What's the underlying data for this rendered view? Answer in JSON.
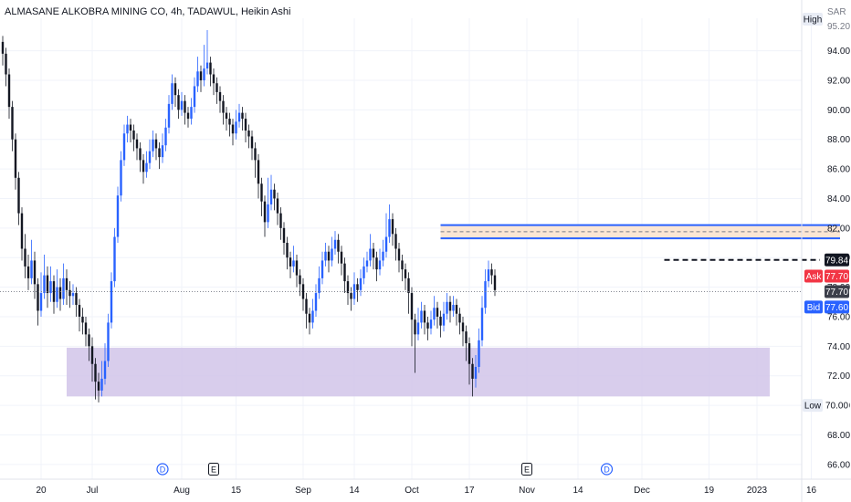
{
  "header": {
    "title": "ALMASANE ALKOBRA MINING CO, 4h, TADAWUL, Heikin Ashi",
    "currency": "SAR"
  },
  "chart_data": {
    "type": "candlestick",
    "chart_style": "Heikin Ashi",
    "symbol": "ALMASANE ALKOBRA MINING CO",
    "interval": "4h",
    "exchange": "TADAWUL",
    "currency": "SAR",
    "ylim": [
      65.0,
      96.2
    ],
    "y_ticks": [
      "94.00",
      "92.00",
      "90.00",
      "88.00",
      "86.00",
      "84.00",
      "82.00",
      "80.00",
      "78.00",
      "76.00",
      "74.00",
      "72.00",
      "70.00",
      "68.00",
      "66.00"
    ],
    "x_ticks": [
      {
        "label": "20",
        "index": 12
      },
      {
        "label": "Jul",
        "index": 28
      },
      {
        "label": "Aug",
        "index": 56
      },
      {
        "label": "15",
        "index": 73
      },
      {
        "label": "Sep",
        "index": 94
      },
      {
        "label": "14",
        "index": 110
      },
      {
        "label": "Oct",
        "index": 128
      },
      {
        "label": "17",
        "index": 146
      },
      {
        "label": "Nov",
        "index": 164
      },
      {
        "label": "14",
        "index": 180
      },
      {
        "label": "Dec",
        "index": 200
      },
      {
        "label": "19",
        "index": 221
      },
      {
        "label": "2023",
        "index": 236
      },
      {
        "label": "16",
        "index": 253
      }
    ],
    "candles": [
      [
        94.6,
        93.8,
        95.0,
        93.0
      ],
      [
        93.8,
        92.4,
        94.2,
        91.6
      ],
      [
        92.4,
        90.2,
        92.8,
        89.4
      ],
      [
        90.2,
        88.0,
        90.6,
        87.2
      ],
      [
        88.0,
        85.4,
        88.4,
        84.6
      ],
      [
        85.4,
        83.0,
        85.8,
        82.2
      ],
      [
        83.0,
        80.6,
        83.4,
        79.8
      ],
      [
        80.6,
        79.4,
        81.6,
        78.6
      ],
      [
        79.4,
        78.6,
        80.2,
        77.8
      ],
      [
        78.6,
        79.8,
        81.2,
        78.2
      ],
      [
        79.8,
        78.2,
        80.4,
        77.2
      ],
      [
        78.2,
        76.4,
        78.6,
        75.4
      ],
      [
        76.4,
        77.6,
        79.0,
        76.0
      ],
      [
        77.6,
        78.8,
        80.2,
        77.2
      ],
      [
        78.8,
        77.6,
        79.4,
        76.6
      ],
      [
        77.6,
        78.4,
        79.4,
        77.0
      ],
      [
        78.4,
        77.0,
        78.8,
        76.2
      ],
      [
        77.0,
        78.0,
        79.2,
        76.6
      ],
      [
        78.0,
        77.2,
        78.6,
        76.4
      ],
      [
        77.2,
        78.6,
        79.6,
        76.8
      ],
      [
        78.6,
        77.8,
        79.2,
        76.8
      ],
      [
        77.8,
        77.4,
        78.4,
        76.6
      ],
      [
        77.4,
        77.6,
        78.2,
        76.8
      ],
      [
        77.6,
        76.8,
        78.0,
        76.0
      ],
      [
        76.8,
        76.0,
        77.2,
        75.0
      ],
      [
        76.0,
        75.6,
        76.6,
        74.8
      ],
      [
        75.6,
        74.8,
        76.0,
        74.0
      ],
      [
        74.8,
        74.0,
        75.2,
        73.0
      ],
      [
        74.0,
        72.8,
        74.6,
        71.6
      ],
      [
        72.8,
        71.6,
        73.2,
        70.4
      ],
      [
        71.6,
        71.0,
        72.2,
        70.2
      ],
      [
        71.0,
        71.8,
        73.0,
        70.6
      ],
      [
        71.8,
        73.0,
        74.2,
        71.4
      ],
      [
        73.0,
        75.6,
        76.2,
        72.6
      ],
      [
        75.6,
        78.4,
        79.0,
        75.2
      ],
      [
        78.4,
        81.4,
        82.0,
        78.0
      ],
      [
        81.4,
        84.2,
        84.8,
        81.0
      ],
      [
        84.2,
        86.6,
        87.2,
        83.8
      ],
      [
        86.6,
        88.4,
        89.0,
        86.2
      ],
      [
        88.4,
        89.0,
        89.6,
        87.8
      ],
      [
        89.0,
        88.6,
        89.4,
        87.8
      ],
      [
        88.6,
        88.0,
        89.0,
        87.2
      ],
      [
        88.0,
        87.4,
        88.4,
        86.6
      ],
      [
        87.4,
        86.6,
        87.8,
        85.8
      ],
      [
        86.6,
        85.8,
        87.0,
        85.0
      ],
      [
        85.8,
        86.4,
        87.2,
        85.4
      ],
      [
        86.4,
        87.2,
        88.0,
        86.0
      ],
      [
        87.2,
        88.0,
        88.6,
        86.8
      ],
      [
        88.0,
        87.4,
        88.4,
        86.6
      ],
      [
        87.4,
        86.8,
        87.8,
        86.0
      ],
      [
        86.8,
        87.6,
        88.4,
        86.4
      ],
      [
        87.6,
        88.8,
        89.4,
        87.2
      ],
      [
        88.8,
        90.4,
        91.0,
        88.4
      ],
      [
        90.4,
        91.8,
        92.4,
        90.0
      ],
      [
        91.8,
        91.0,
        92.2,
        90.2
      ],
      [
        91.0,
        90.0,
        91.4,
        89.4
      ],
      [
        90.0,
        90.6,
        91.2,
        89.6
      ],
      [
        90.6,
        89.8,
        91.0,
        89.0
      ],
      [
        89.8,
        89.4,
        90.2,
        88.8
      ],
      [
        89.4,
        90.2,
        90.8,
        89.0
      ],
      [
        90.2,
        91.6,
        92.2,
        89.8
      ],
      [
        91.6,
        92.6,
        93.6,
        91.2
      ],
      [
        92.6,
        92.0,
        93.0,
        91.2
      ],
      [
        92.0,
        92.8,
        94.4,
        91.6
      ],
      [
        92.8,
        93.2,
        95.4,
        92.4
      ],
      [
        93.2,
        92.4,
        93.6,
        91.6
      ],
      [
        92.4,
        91.8,
        92.8,
        91.0
      ],
      [
        91.8,
        91.2,
        92.2,
        90.4
      ],
      [
        91.2,
        90.6,
        91.6,
        89.8
      ],
      [
        90.6,
        89.8,
        91.0,
        89.0
      ],
      [
        89.8,
        89.4,
        90.2,
        88.6
      ],
      [
        89.4,
        89.0,
        89.8,
        88.2
      ],
      [
        89.0,
        88.4,
        89.4,
        87.6
      ],
      [
        88.4,
        89.2,
        90.0,
        88.0
      ],
      [
        89.2,
        89.8,
        90.4,
        88.8
      ],
      [
        89.8,
        89.4,
        90.2,
        88.6
      ],
      [
        89.4,
        88.6,
        89.8,
        87.8
      ],
      [
        88.6,
        88.2,
        89.0,
        87.4
      ],
      [
        88.2,
        87.4,
        88.6,
        86.6
      ],
      [
        87.4,
        86.6,
        87.8,
        85.4
      ],
      [
        86.6,
        85.0,
        87.0,
        84.0
      ],
      [
        85.0,
        83.8,
        85.4,
        82.8
      ],
      [
        83.8,
        82.4,
        84.2,
        81.4
      ],
      [
        82.4,
        83.6,
        85.4,
        82.0
      ],
      [
        83.6,
        84.6,
        85.6,
        83.2
      ],
      [
        84.6,
        84.0,
        85.0,
        83.2
      ],
      [
        84.0,
        83.0,
        84.4,
        82.2
      ],
      [
        83.0,
        82.0,
        83.4,
        81.2
      ],
      [
        82.0,
        81.0,
        82.4,
        80.2
      ],
      [
        81.0,
        80.0,
        81.4,
        79.2
      ],
      [
        80.0,
        79.4,
        80.4,
        78.6
      ],
      [
        79.4,
        79.8,
        80.8,
        79.0
      ],
      [
        79.8,
        78.8,
        80.2,
        78.0
      ],
      [
        78.8,
        78.2,
        79.2,
        77.4
      ],
      [
        78.2,
        77.2,
        78.6,
        76.4
      ],
      [
        77.2,
        76.2,
        77.6,
        75.2
      ],
      [
        76.2,
        75.6,
        76.6,
        74.8
      ],
      [
        75.6,
        76.4,
        77.2,
        75.2
      ],
      [
        76.4,
        77.6,
        78.2,
        76.0
      ],
      [
        77.6,
        78.6,
        79.4,
        77.2
      ],
      [
        78.6,
        79.8,
        80.4,
        78.2
      ],
      [
        79.8,
        80.4,
        81.0,
        79.4
      ],
      [
        80.4,
        79.8,
        80.8,
        79.0
      ],
      [
        79.8,
        80.6,
        81.4,
        79.4
      ],
      [
        80.6,
        81.2,
        81.8,
        80.2
      ],
      [
        81.2,
        80.4,
        81.6,
        79.6
      ],
      [
        80.4,
        79.6,
        80.8,
        78.8
      ],
      [
        79.6,
        78.4,
        80.0,
        77.6
      ],
      [
        78.4,
        77.6,
        78.8,
        76.8
      ],
      [
        77.6,
        77.2,
        78.0,
        76.4
      ],
      [
        77.2,
        78.2,
        79.0,
        76.8
      ],
      [
        78.2,
        77.8,
        78.6,
        77.0
      ],
      [
        77.8,
        78.6,
        79.2,
        77.4
      ],
      [
        78.6,
        79.4,
        80.0,
        78.2
      ],
      [
        79.4,
        79.8,
        80.4,
        79.0
      ],
      [
        79.8,
        80.6,
        81.6,
        79.4
      ],
      [
        80.6,
        80.0,
        81.0,
        79.2
      ],
      [
        80.0,
        79.2,
        80.4,
        78.4
      ],
      [
        79.2,
        79.8,
        80.6,
        78.8
      ],
      [
        79.8,
        80.4,
        81.2,
        79.4
      ],
      [
        80.4,
        81.4,
        83.0,
        80.0
      ],
      [
        81.4,
        82.6,
        83.6,
        81.0
      ],
      [
        82.6,
        81.6,
        83.0,
        80.8
      ],
      [
        81.6,
        80.6,
        82.0,
        79.8
      ],
      [
        80.6,
        79.8,
        81.0,
        79.0
      ],
      [
        79.8,
        79.2,
        80.2,
        78.4
      ],
      [
        79.2,
        78.6,
        79.6,
        77.8
      ],
      [
        78.6,
        77.6,
        79.0,
        76.2
      ],
      [
        77.6,
        75.8,
        78.0,
        74.0
      ],
      [
        75.8,
        74.8,
        76.2,
        72.2
      ],
      [
        74.8,
        75.6,
        76.6,
        74.4
      ],
      [
        75.6,
        76.4,
        77.0,
        75.2
      ],
      [
        76.4,
        75.6,
        76.8,
        74.8
      ],
      [
        75.6,
        75.2,
        76.0,
        74.4
      ],
      [
        75.2,
        75.8,
        76.4,
        74.8
      ],
      [
        75.8,
        76.6,
        77.4,
        75.4
      ],
      [
        76.6,
        76.0,
        77.0,
        75.2
      ],
      [
        76.0,
        75.4,
        76.4,
        74.6
      ],
      [
        75.4,
        76.2,
        77.0,
        75.0
      ],
      [
        76.2,
        77.0,
        77.6,
        75.8
      ],
      [
        77.0,
        76.4,
        77.4,
        75.6
      ],
      [
        76.4,
        76.8,
        77.4,
        76.0
      ],
      [
        76.8,
        76.2,
        77.2,
        75.4
      ],
      [
        76.2,
        75.6,
        76.6,
        74.8
      ],
      [
        75.6,
        75.0,
        76.0,
        74.0
      ],
      [
        75.0,
        74.2,
        75.4,
        73.0
      ],
      [
        74.2,
        72.8,
        74.6,
        71.4
      ],
      [
        72.8,
        71.8,
        73.2,
        70.6
      ],
      [
        71.8,
        72.6,
        73.4,
        71.2
      ],
      [
        72.6,
        74.4,
        75.2,
        72.2
      ],
      [
        74.4,
        76.6,
        77.4,
        74.0
      ],
      [
        76.6,
        78.4,
        79.2,
        76.2
      ],
      [
        78.4,
        79.2,
        79.8,
        78.0
      ],
      [
        79.2,
        78.8,
        79.6,
        78.2
      ],
      [
        78.8,
        77.8,
        79.2,
        77.4
      ]
    ],
    "price_labels": {
      "high": {
        "label": "High",
        "value": "95.20"
      },
      "low": {
        "label": "Low",
        "value": "70.00"
      },
      "ask": {
        "label": "Ask",
        "value": "77.70"
      },
      "last": {
        "value": "77.70"
      },
      "bid": {
        "label": "Bid",
        "value": "77.60"
      },
      "level": {
        "value": "79.84"
      }
    },
    "annotations": {
      "demand_zone": {
        "price_low": 70.6,
        "price_high": 73.9,
        "start_index": 20,
        "end_index": 240,
        "color": "#d1c4e9"
      },
      "supply_zone": {
        "price_low": 81.3,
        "price_high": 82.2,
        "start_index": 137,
        "end_index": 262,
        "color": "#fbe3cf",
        "border_color": "#2962ff"
      },
      "level_line": {
        "price": 79.84,
        "start_index": 207,
        "end_index": 264
      },
      "last_price_line": {
        "price": 77.7
      }
    },
    "events": [
      {
        "label": "D",
        "kind": "dividend",
        "index": 50
      },
      {
        "label": "E",
        "kind": "earnings",
        "index": 66
      },
      {
        "label": "E",
        "kind": "earnings",
        "index": 164
      },
      {
        "label": "D",
        "kind": "dividend",
        "index": 189
      }
    ],
    "colors": {
      "up": "#2962ff",
      "down": "#131722",
      "grid": "#f0f3fa",
      "ask": "#f23645",
      "bid": "#2962ff",
      "level": "#131722"
    }
  }
}
